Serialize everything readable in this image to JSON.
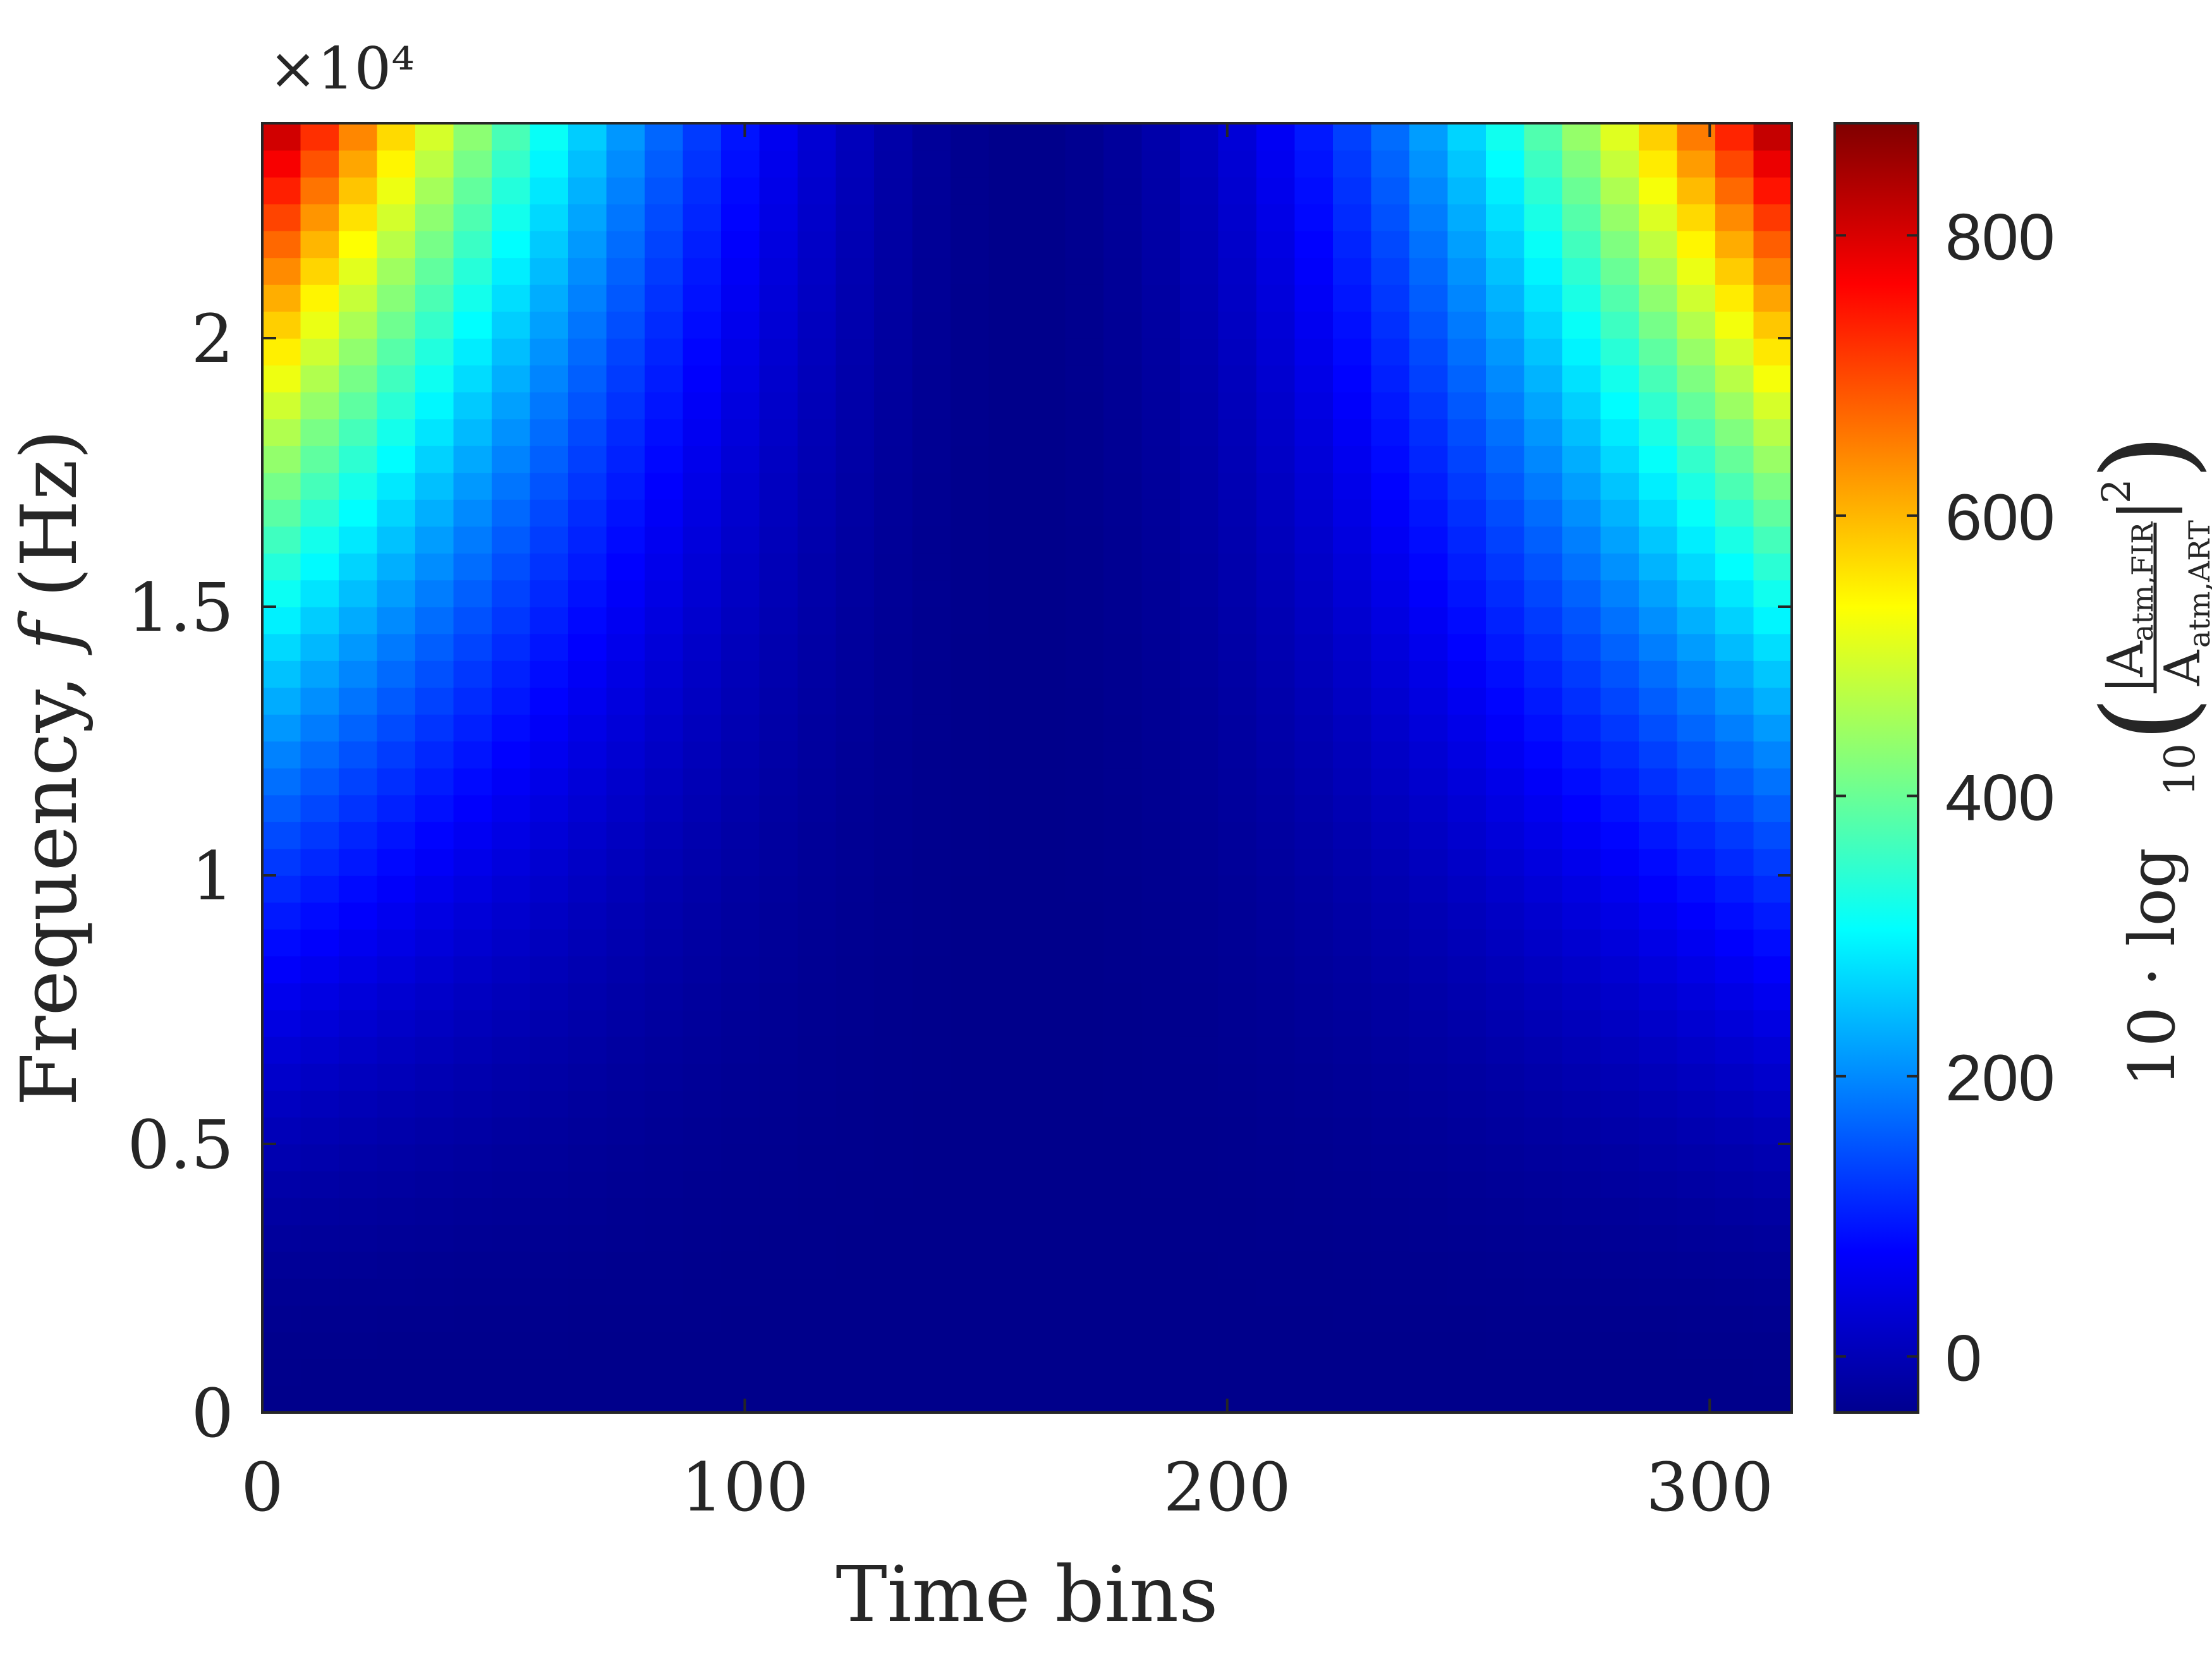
{
  "chart_data": {
    "type": "heatmap",
    "xlabel": "Time bins",
    "ylabel": "Frequency, 𝑓 (Hz)",
    "y_exponent_label": "×10⁴",
    "xlim": [
      0,
      317
    ],
    "ylim": [
      0,
      24000
    ],
    "x_ticks": [
      0,
      100,
      200,
      300
    ],
    "x_tick_labels": [
      "0",
      "100",
      "200",
      "300"
    ],
    "y_ticks": [
      0,
      5000,
      10000,
      15000,
      20000
    ],
    "y_tick_labels": [
      "0",
      "0.5",
      "1",
      "1.5",
      "2"
    ],
    "colorbar": {
      "label": "10 · log₁₀ ( |A_atm,FIR / A_atm,ART|² )",
      "label_prefix": "10 · log",
      "label_log_base": "10",
      "label_numerator": "|A",
      "label_numerator_sub": "atm,FIR",
      "label_denominator": "A",
      "label_denominator_sub": "atm,ART",
      "label_exponent": "2",
      "range": [
        -40,
        880
      ],
      "ticks": [
        0,
        200,
        400,
        600,
        800
      ],
      "tick_labels": [
        "0",
        "200",
        "400",
        "600",
        "800"
      ],
      "colormap": "jet"
    },
    "description_values": {
      "center_time_bin": 158,
      "max_value_at_corners": 880,
      "min_value_at_low_frequency": -30
    }
  }
}
